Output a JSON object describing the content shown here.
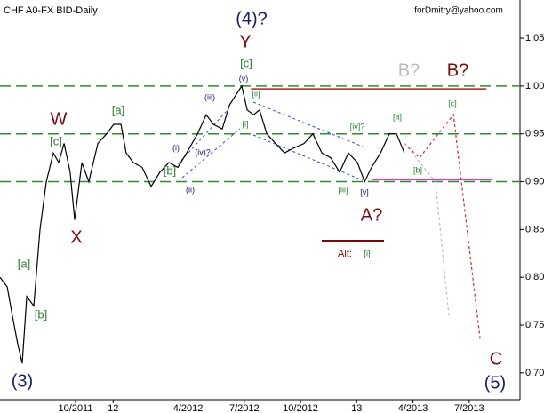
{
  "chart_data": {
    "type": "line",
    "title": "CHF A0-FX BID-Daily",
    "xlim": [
      2011.414,
      2013.726
    ],
    "xticks": [
      {
        "value": 2011.75,
        "label": "10/2011"
      },
      {
        "value": 2011.917,
        "label": "12"
      },
      {
        "value": 2012.25,
        "label": "4/2012"
      },
      {
        "value": 2012.5,
        "label": "7/2012"
      },
      {
        "value": 2012.75,
        "label": "10/2012"
      },
      {
        "value": 2013.0,
        "label": "13"
      },
      {
        "value": 2013.25,
        "label": "4/2013"
      },
      {
        "value": 2013.5,
        "label": "7/2013"
      }
    ],
    "ylim": [
      0.672,
      1.09
    ],
    "yticks": [
      1.05,
      {
        "value": 1.0,
        "label": "1.00"
      },
      {
        "value": 0.95,
        "label": "0.950"
      },
      {
        "value": 0.9,
        "label": "0.900"
      },
      {
        "value": 0.85,
        "label": "0.850"
      },
      {
        "value": 0.8,
        "label": "0.800"
      },
      {
        "value": 0.75,
        "label": "0.750"
      },
      {
        "value": 0.7,
        "label": "0.700"
      }
    ],
    "series": [
      {
        "name": "CHF A0-FX BID",
        "color": "#000000",
        "x": [
          2011.414,
          2011.446,
          2011.469,
          2011.493,
          2011.513,
          2011.533,
          2011.564,
          2011.592,
          2011.62,
          2011.651,
          2011.675,
          2011.699,
          2011.726,
          2011.746,
          2011.778,
          2011.809,
          2011.849,
          2011.888,
          2011.92,
          2011.952,
          2011.975,
          2012.007,
          2012.046,
          2012.086,
          2012.125,
          2012.165,
          2012.205,
          2012.244,
          2012.292,
          2012.331,
          2012.363,
          2012.402,
          2012.434,
          2012.461,
          2012.489,
          2012.513,
          2012.541,
          2012.568,
          2012.6,
          2012.639,
          2012.679,
          2012.718,
          2012.766,
          2012.805,
          2012.845,
          2012.884,
          2012.924,
          2012.963,
          2013.003,
          2013.035,
          2013.066,
          2013.106,
          2013.145,
          2013.177,
          2013.212
        ],
        "values": [
          0.8,
          0.79,
          0.76,
          0.73,
          0.71,
          0.78,
          0.77,
          0.85,
          0.9,
          0.93,
          0.92,
          0.94,
          0.91,
          0.86,
          0.92,
          0.9,
          0.94,
          0.95,
          0.96,
          0.96,
          0.93,
          0.92,
          0.915,
          0.895,
          0.91,
          0.92,
          0.915,
          0.93,
          0.95,
          0.97,
          0.96,
          0.955,
          0.98,
          0.99,
          1.0,
          0.975,
          0.97,
          0.975,
          0.95,
          0.94,
          0.93,
          0.935,
          0.94,
          0.95,
          0.93,
          0.925,
          0.91,
          0.93,
          0.92,
          0.9,
          0.915,
          0.93,
          0.95,
          0.95,
          0.93
        ]
      }
    ],
    "projections": [
      {
        "color": "#dd2222",
        "x": [
          2013.212,
          2013.279,
          2013.43,
          2013.549
        ],
        "values": [
          0.94,
          0.925,
          0.97,
          0.735
        ]
      },
      {
        "color": "#bbbbbb",
        "x": [
          2013.212,
          2013.35,
          2013.41
        ],
        "values": [
          0.94,
          0.9,
          0.76
        ]
      }
    ],
    "levels": [
      {
        "value": 1.0,
        "color": "#2e8b2e"
      },
      {
        "value": 0.95,
        "color": "#2e8b2e"
      },
      {
        "value": 0.9,
        "color": "#2e8b2e"
      }
    ],
    "segments": [
      {
        "color": "#aa2222",
        "x": [
          2012.53,
          2013.577
        ],
        "value": 0.997
      },
      {
        "color": "#dd33dd",
        "x": [
          2013.07,
          2013.6
        ],
        "value": 0.902
      }
    ],
    "annotations": [
      "forDmitry@yahoo.com",
      "(4)?",
      "Y",
      "[c]",
      "(v)",
      "[ii]",
      "(iii)",
      "[i]",
      "(i)",
      "(iv)?",
      "(ii)",
      "W",
      "[a]",
      "[c]",
      "[b]",
      "X",
      "[a]",
      "[b]",
      "(3)",
      "[iv]?",
      "[a]",
      "[iii]",
      "[v]",
      "[b]",
      "[c]",
      "B?",
      "B?",
      "A?",
      "Alt:",
      "[i]",
      "C",
      "(5)"
    ]
  }
}
